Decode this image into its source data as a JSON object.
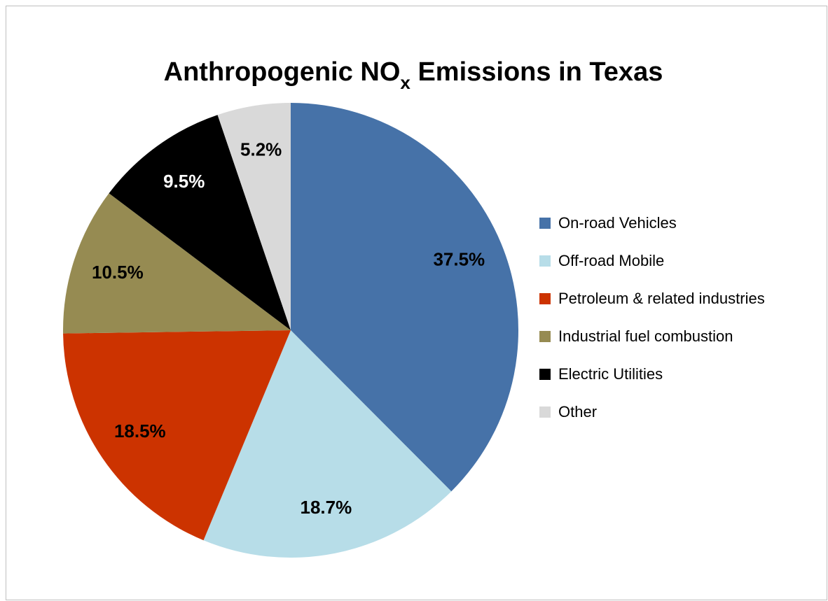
{
  "chart_data": {
    "type": "pie",
    "title": [
      "Anthropogenic NO",
      "x",
      " Emissions in Texas"
    ],
    "categories": [
      "On-road Vehicles",
      "Off-road Mobile",
      "Petroleum & related industries",
      "Industrial fuel combustion",
      "Electric Utilities",
      "Other"
    ],
    "values": [
      37.5,
      18.7,
      18.5,
      10.5,
      9.5,
      5.2
    ],
    "value_labels": [
      "37.5%",
      "18.7%",
      "18.5%",
      "10.5%",
      "9.5%",
      "5.2%"
    ],
    "colors": [
      "#4672a8",
      "#b7dde8",
      "#cc3300",
      "#968b52",
      "#000000",
      "#d9d9d9"
    ],
    "legend": "right"
  }
}
